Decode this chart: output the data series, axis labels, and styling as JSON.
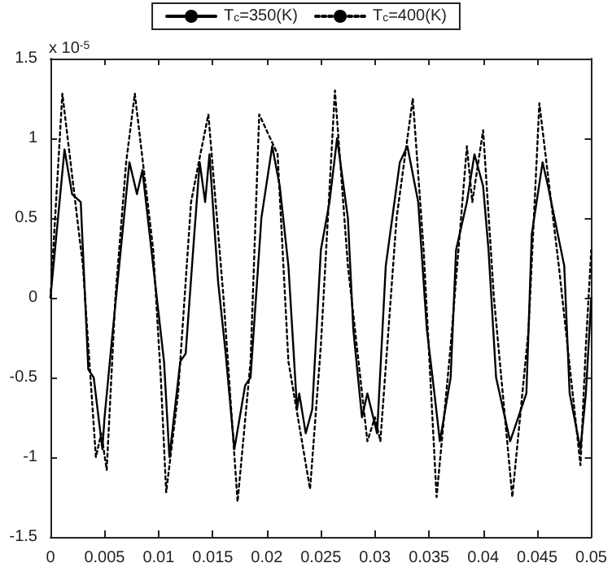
{
  "chart_data": {
    "type": "line",
    "xlim": [
      0,
      0.05
    ],
    "xticks": [
      0,
      0.005,
      0.01,
      0.015,
      0.02,
      0.025,
      0.03,
      0.035,
      0.04,
      0.045,
      0.05
    ],
    "ylim": [
      -1.5,
      1.5
    ],
    "yticks": [
      -1.5,
      -1,
      -0.5,
      0,
      0.5,
      1,
      1.5
    ],
    "grid": false,
    "legend": "top",
    "marker": "none",
    "annotations": [
      "x 10$^{-5}$"
    ],
    "series": [
      {
        "name": "T$_{c}$=350(K)",
        "color": "#000000",
        "line_style": "solid",
        "x": [
          0,
          0.0013,
          0.002,
          0.0028,
          0.0035,
          0.004,
          0.0048,
          0.005,
          0.0057,
          0.0065,
          0.0073,
          0.008,
          0.0085,
          0.0095,
          0.0105,
          0.011,
          0.012,
          0.0125,
          0.0133,
          0.0138,
          0.0143,
          0.0147,
          0.0155,
          0.0162,
          0.017,
          0.018,
          0.0185,
          0.0195,
          0.0205,
          0.0212,
          0.022,
          0.0228,
          0.023,
          0.0236,
          0.0242,
          0.025,
          0.0258,
          0.0265,
          0.0275,
          0.028,
          0.0288,
          0.0293,
          0.0302,
          0.031,
          0.0323,
          0.033,
          0.034,
          0.0348,
          0.0355,
          0.036,
          0.037,
          0.0375,
          0.0385,
          0.0392,
          0.04,
          0.0405,
          0.0412,
          0.0425,
          0.044,
          0.0445,
          0.0455,
          0.046,
          0.0475,
          0.048,
          0.049,
          0.0495,
          0.05
        ],
        "values": [
          0,
          0.93,
          0.65,
          0.6,
          -0.45,
          -0.5,
          -0.95,
          -0.75,
          -0.25,
          0.3,
          0.85,
          0.65,
          0.8,
          0.2,
          -0.4,
          -1.0,
          -0.4,
          -0.35,
          0.4,
          0.85,
          0.6,
          0.9,
          0.1,
          -0.35,
          -0.95,
          -0.55,
          -0.5,
          0.5,
          0.95,
          0.7,
          0.2,
          -0.7,
          -0.6,
          -0.85,
          -0.7,
          0.3,
          0.6,
          1.0,
          0.5,
          -0.2,
          -0.75,
          -0.6,
          -0.85,
          0.2,
          0.85,
          0.95,
          0.6,
          -0.2,
          -0.6,
          -0.9,
          -0.5,
          0.3,
          0.6,
          0.9,
          0.7,
          0.3,
          -0.5,
          -0.9,
          -0.6,
          0.4,
          0.85,
          0.7,
          0.2,
          -0.6,
          -0.95,
          -0.6,
          0
        ]
      },
      {
        "name": "T$_{c}$=400(K)",
        "color": "#000000",
        "line_style": "dotted",
        "x": [
          0,
          0.0011,
          0.003,
          0.0042,
          0.0047,
          0.0052,
          0.006,
          0.007,
          0.0078,
          0.0095,
          0.0102,
          0.0107,
          0.0118,
          0.013,
          0.0138,
          0.0146,
          0.016,
          0.0173,
          0.0185,
          0.0193,
          0.021,
          0.022,
          0.024,
          0.025,
          0.0263,
          0.0275,
          0.0293,
          0.03,
          0.0305,
          0.032,
          0.0335,
          0.0345,
          0.0357,
          0.037,
          0.0385,
          0.039,
          0.04,
          0.041,
          0.0427,
          0.0442,
          0.0452,
          0.047,
          0.049,
          0.0495,
          0.05
        ],
        "values": [
          0,
          1.28,
          0.2,
          -1.0,
          -0.85,
          -1.08,
          0,
          0.85,
          1.28,
          0.3,
          -0.5,
          -1.22,
          -0.6,
          0.6,
          0.88,
          1.15,
          0,
          -1.28,
          -0.4,
          1.15,
          0.9,
          -0.4,
          -1.2,
          -0.3,
          1.3,
          0.2,
          -0.9,
          -0.75,
          -0.9,
          0.5,
          1.25,
          0.3,
          -1.25,
          -0.3,
          0.95,
          0.6,
          1.05,
          0,
          -1.25,
          -0.2,
          1.22,
          0.2,
          -1.05,
          -0.3,
          0.3
        ]
      }
    ]
  }
}
